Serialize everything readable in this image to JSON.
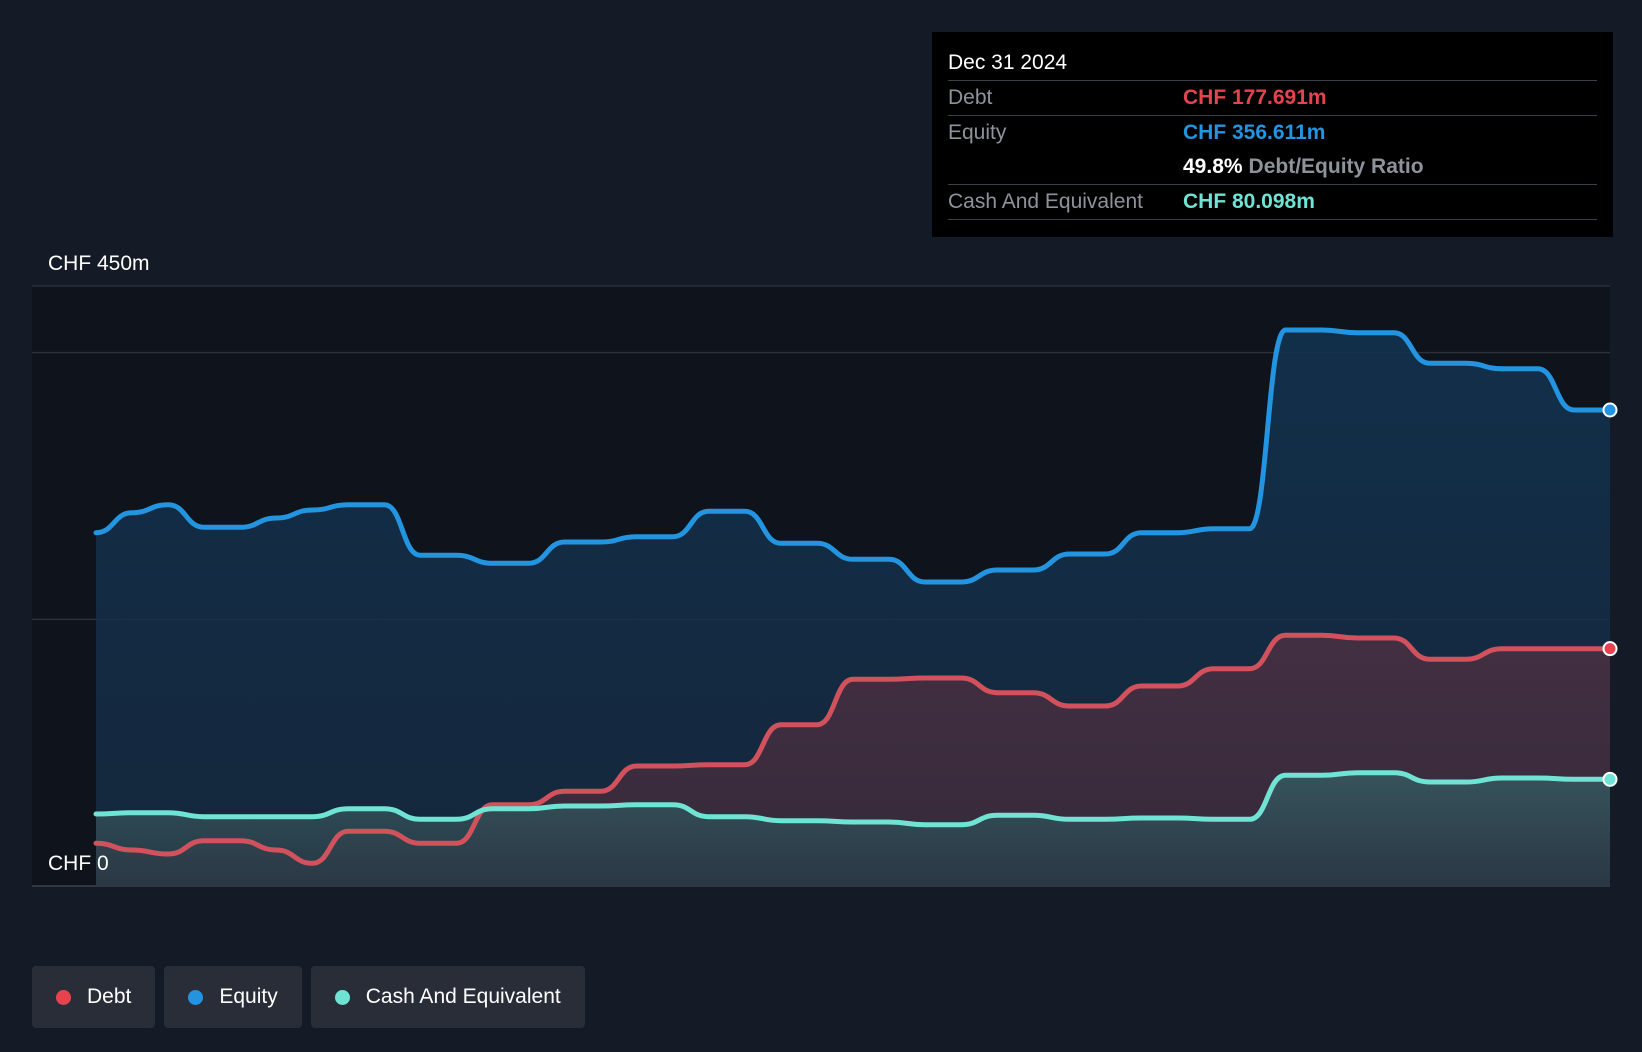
{
  "tooltip": {
    "date": "Dec 31 2024",
    "debt_label": "Debt",
    "debt_value": "CHF 177.691m",
    "equity_label": "Equity",
    "equity_value": "CHF 356.611m",
    "ratio_value": "49.8%",
    "ratio_label": "Debt/Equity Ratio",
    "cash_label": "Cash And Equivalent",
    "cash_value": "CHF 80.098m"
  },
  "legend": {
    "debt": "Debt",
    "equity": "Equity",
    "cash": "Cash And Equivalent"
  },
  "colors": {
    "debt": "#e5444f",
    "equity": "#2394df",
    "cash": "#6fe3d4",
    "background": "#151b26"
  },
  "chart_data": {
    "type": "area",
    "y_top_label": "CHF 450m",
    "y_bottom_label": "CHF 0",
    "ylim": [
      0,
      450
    ],
    "xlim": [
      2014.5,
      2025.0
    ],
    "xticks": [
      "2015",
      "2016",
      "2017",
      "2018",
      "2019",
      "2020",
      "2021",
      "2022",
      "2023",
      "2024"
    ],
    "grid": true,
    "legend_position": "bottom-left",
    "series": [
      {
        "name": "Equity",
        "color": "#2394df",
        "x": [
          2014.5,
          2014.75,
          2015.0,
          2015.25,
          2015.5,
          2015.75,
          2016.0,
          2016.25,
          2016.5,
          2016.75,
          2017.0,
          2017.25,
          2017.5,
          2017.75,
          2018.0,
          2018.25,
          2018.5,
          2018.75,
          2019.0,
          2019.25,
          2019.5,
          2019.75,
          2020.0,
          2020.25,
          2020.5,
          2020.75,
          2021.0,
          2021.25,
          2021.5,
          2021.75,
          2022.0,
          2022.25,
          2022.5,
          2022.75,
          2023.0,
          2023.25,
          2023.5,
          2023.75,
          2024.0,
          2024.25,
          2024.5,
          2024.75,
          2025.0
        ],
        "values": [
          265,
          280,
          286,
          269,
          269,
          276,
          282,
          286,
          286,
          248,
          248,
          242,
          242,
          258,
          258,
          262,
          262,
          281,
          281,
          257,
          257,
          245,
          245,
          228,
          228,
          237,
          237,
          249,
          249,
          265,
          265,
          268,
          268,
          417,
          417,
          415,
          415,
          392,
          392,
          388,
          388,
          357,
          357
        ]
      },
      {
        "name": "Debt",
        "color": "#e5444f",
        "x": [
          2014.5,
          2014.75,
          2015.0,
          2015.25,
          2015.5,
          2015.75,
          2016.0,
          2016.25,
          2016.5,
          2016.75,
          2017.0,
          2017.25,
          2017.5,
          2017.75,
          2018.0,
          2018.25,
          2018.5,
          2018.75,
          2019.0,
          2019.25,
          2019.5,
          2019.75,
          2020.0,
          2020.25,
          2020.5,
          2020.75,
          2021.0,
          2021.25,
          2021.5,
          2021.75,
          2022.0,
          2022.25,
          2022.5,
          2022.75,
          2023.0,
          2023.25,
          2023.5,
          2023.75,
          2024.0,
          2024.25,
          2024.5,
          2024.75,
          2025.0
        ],
        "values": [
          32,
          27,
          24,
          34,
          34,
          27,
          17,
          41,
          41,
          32,
          32,
          61,
          61,
          71,
          71,
          90,
          90,
          91,
          91,
          121,
          121,
          155,
          155,
          156,
          156,
          145,
          145,
          135,
          135,
          150,
          150,
          163,
          163,
          188,
          188,
          186,
          186,
          170,
          170,
          178,
          178,
          178,
          178
        ]
      },
      {
        "name": "Cash And Equivalent",
        "color": "#6fe3d4",
        "x": [
          2014.5,
          2014.75,
          2015.0,
          2015.25,
          2015.5,
          2015.75,
          2016.0,
          2016.25,
          2016.5,
          2016.75,
          2017.0,
          2017.25,
          2017.5,
          2017.75,
          2018.0,
          2018.25,
          2018.5,
          2018.75,
          2019.0,
          2019.25,
          2019.5,
          2019.75,
          2020.0,
          2020.25,
          2020.5,
          2020.75,
          2021.0,
          2021.25,
          2021.5,
          2021.75,
          2022.0,
          2022.25,
          2022.5,
          2022.75,
          2023.0,
          2023.25,
          2023.5,
          2023.75,
          2024.0,
          2024.25,
          2024.5,
          2024.75,
          2025.0
        ],
        "values": [
          54,
          55,
          55,
          52,
          52,
          52,
          52,
          58,
          58,
          50,
          50,
          58,
          58,
          60,
          60,
          61,
          61,
          52,
          52,
          49,
          49,
          48,
          48,
          46,
          46,
          53,
          53,
          50,
          50,
          51,
          51,
          50,
          50,
          83,
          83,
          85,
          85,
          78,
          78,
          81,
          81,
          80,
          80
        ]
      }
    ]
  }
}
